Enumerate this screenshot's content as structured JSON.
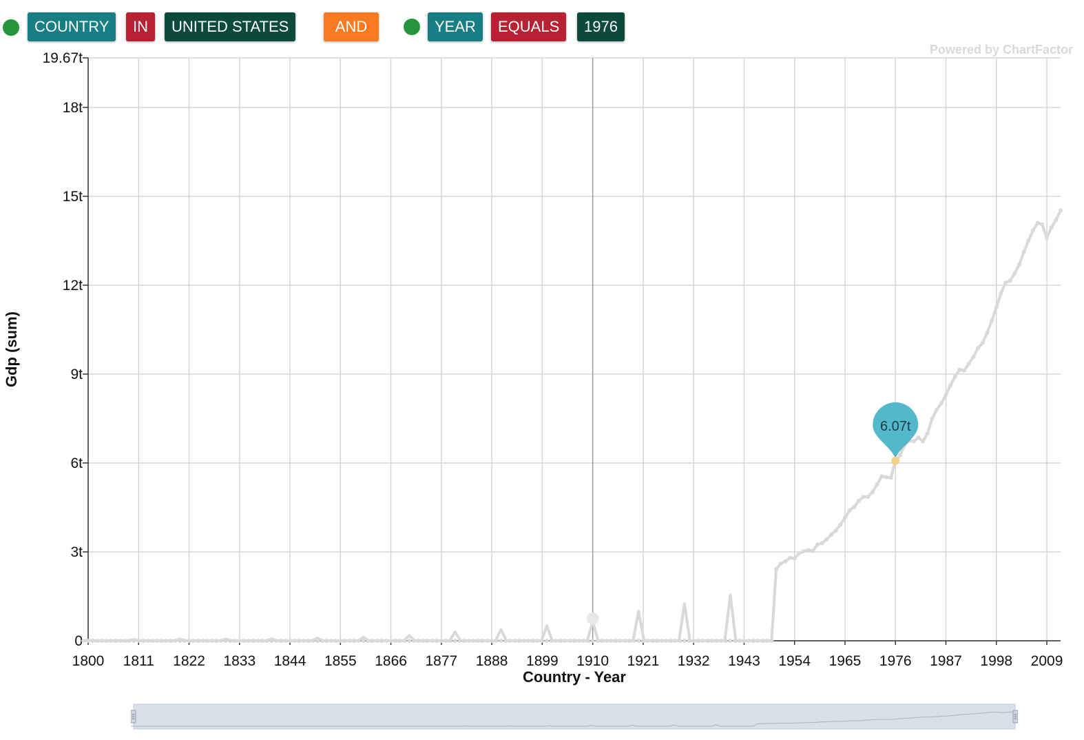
{
  "filters": [
    {
      "dot_color": "#26943d",
      "chips": [
        {
          "text": "COUNTRY",
          "color": "#177f83"
        },
        {
          "text": "IN",
          "color": "#b82033"
        },
        {
          "text": "UNITED STATES",
          "color": "#0c4a3c"
        }
      ]
    },
    {
      "operator": "AND",
      "color": "#fa7a22"
    },
    {
      "dot_color": "#26943d",
      "chips": [
        {
          "text": "YEAR",
          "color": "#177f83"
        },
        {
          "text": "EQUALS",
          "color": "#b82033"
        },
        {
          "text": "1976",
          "color": "#0c4a3c"
        }
      ]
    }
  ],
  "watermark": "Powered by ChartFactor",
  "chart_data": {
    "type": "line",
    "xlabel": "Country - Year",
    "ylabel": "Gdp (sum)",
    "xlim": [
      1800,
      2012
    ],
    "ylim": [
      0,
      19.67
    ],
    "y_unit": "trillions",
    "x_ticks": [
      "1800",
      "1811",
      "1822",
      "1833",
      "1844",
      "1855",
      "1866",
      "1877",
      "1888",
      "1899",
      "1910",
      "1921",
      "1932",
      "1943",
      "1954",
      "1965",
      "1976",
      "1987",
      "1998",
      "2009"
    ],
    "y_ticks": [
      "0",
      "3t",
      "6t",
      "9t",
      "12t",
      "15t",
      "18t",
      "19.67t"
    ],
    "grid": true,
    "line_color": "#d9d9d9",
    "highlight": {
      "x": 1976,
      "y": 6.07,
      "label": "6.07t",
      "pin_color": "#4bb4c8",
      "point_color": "#f5d08a"
    },
    "series": [
      {
        "x": [
          1800,
          1810,
          1820,
          1830,
          1840,
          1850,
          1860,
          1870,
          1880,
          1890,
          1900,
          1910,
          1920,
          1930,
          1940,
          1949,
          1950,
          1951,
          1952,
          1953,
          1954,
          1955,
          1956,
          1957,
          1958,
          1959,
          1960,
          1961,
          1962,
          1963,
          1964,
          1965,
          1966,
          1967,
          1968,
          1969,
          1970,
          1971,
          1972,
          1973,
          1974,
          1975,
          1976,
          1977,
          1978,
          1979,
          1980,
          1981,
          1982,
          1983,
          1984,
          1985,
          1986,
          1987,
          1988,
          1989,
          1990,
          1991,
          1992,
          1993,
          1994,
          1995,
          1996,
          1997,
          1998,
          1999,
          2000,
          2001,
          2002,
          2003,
          2004,
          2005,
          2006,
          2007,
          2008,
          2009,
          2010,
          2011,
          2012
        ],
        "y": [
          0.02,
          0.05,
          0.06,
          0.06,
          0.07,
          0.09,
          0.12,
          0.18,
          0.3,
          0.38,
          0.5,
          0.65,
          1.0,
          1.25,
          1.55,
          0,
          2.42,
          2.6,
          2.68,
          2.8,
          2.78,
          2.95,
          3.02,
          3.06,
          3.03,
          3.25,
          3.3,
          3.42,
          3.58,
          3.72,
          3.92,
          4.15,
          4.4,
          4.52,
          4.72,
          4.85,
          4.86,
          5.02,
          5.28,
          5.55,
          5.52,
          5.5,
          6.07,
          6.26,
          6.6,
          6.75,
          6.73,
          6.86,
          6.73,
          7.0,
          7.5,
          7.8,
          8.02,
          8.3,
          8.62,
          8.92,
          9.15,
          9.12,
          9.35,
          9.58,
          9.88,
          10.05,
          10.4,
          10.8,
          11.25,
          11.72,
          12.08,
          12.15,
          12.4,
          12.7,
          13.12,
          13.5,
          13.85,
          14.1,
          14.05,
          13.6,
          13.95,
          14.2,
          14.52
        ]
      }
    ]
  }
}
